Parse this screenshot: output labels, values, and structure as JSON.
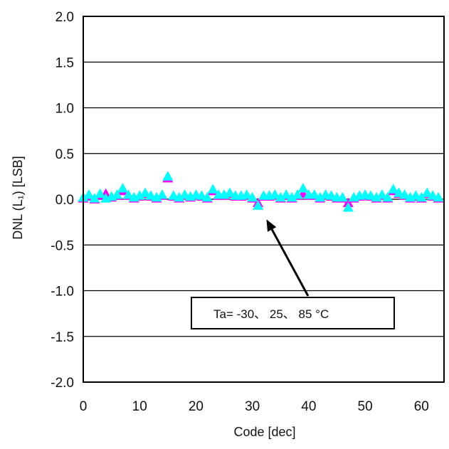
{
  "chart_data": {
    "type": "scatter",
    "title": "",
    "xlabel": "Code [dec]",
    "ylabel": "DNL (L₁) [LSB]",
    "xlim": [
      0,
      64
    ],
    "ylim": [
      -2.0,
      2.0
    ],
    "xticks": [
      "0",
      "10",
      "20",
      "30",
      "40",
      "50",
      "60"
    ],
    "yticks": [
      "2.0",
      "1.5",
      "1.0",
      "0.5",
      "0.0",
      "-0.5",
      "-1.0",
      "-1.5",
      "-2.0"
    ],
    "grid": "horizontal",
    "marker": "triangle",
    "colors": {
      "series_a": "#ff00ff",
      "series_b": "#00ffff"
    },
    "annotation": {
      "text": "Ta= -30、 25、 85 °C",
      "arrow_target": [
        32,
        -0.05
      ]
    },
    "series": [
      {
        "values": [
          0.0,
          0.02,
          -0.01,
          0.03,
          0.05,
          0.01,
          0.03,
          0.08,
          0.03,
          0.0,
          0.02,
          0.05,
          0.02,
          0.0,
          0.03,
          0.22,
          0.02,
          0.0,
          0.03,
          0.01,
          0.03,
          0.02,
          0.0,
          0.08,
          0.03,
          0.03,
          0.05,
          0.02,
          0.02,
          0.03,
          0.0,
          -0.05,
          0.02,
          0.02,
          0.03,
          0.0,
          0.03,
          0.0,
          0.03,
          0.05,
          0.03,
          0.03,
          0.0,
          0.03,
          0.02,
          0.0,
          0.0,
          -0.05,
          0.0,
          0.02,
          0.03,
          0.02,
          0.0,
          0.03,
          0.0,
          0.08,
          0.05,
          0.03,
          0.0,
          0.02,
          0.0,
          0.05,
          0.02,
          0.0
        ]
      },
      {
        "values": [
          0.01,
          0.04,
          0.0,
          0.05,
          0.0,
          0.02,
          0.04,
          0.11,
          0.04,
          0.01,
          0.03,
          0.06,
          0.03,
          0.01,
          0.04,
          0.24,
          0.03,
          0.01,
          0.04,
          0.02,
          0.04,
          0.03,
          0.01,
          0.1,
          0.04,
          0.04,
          0.06,
          0.03,
          0.03,
          0.04,
          0.01,
          -0.08,
          0.03,
          0.03,
          0.04,
          0.01,
          0.04,
          0.01,
          0.04,
          0.11,
          0.04,
          0.04,
          0.01,
          0.04,
          0.03,
          0.01,
          0.01,
          -0.1,
          0.01,
          0.03,
          0.04,
          0.03,
          0.01,
          0.04,
          0.01,
          0.1,
          0.06,
          0.04,
          0.01,
          0.03,
          0.01,
          0.06,
          0.03,
          0.01
        ]
      }
    ]
  }
}
